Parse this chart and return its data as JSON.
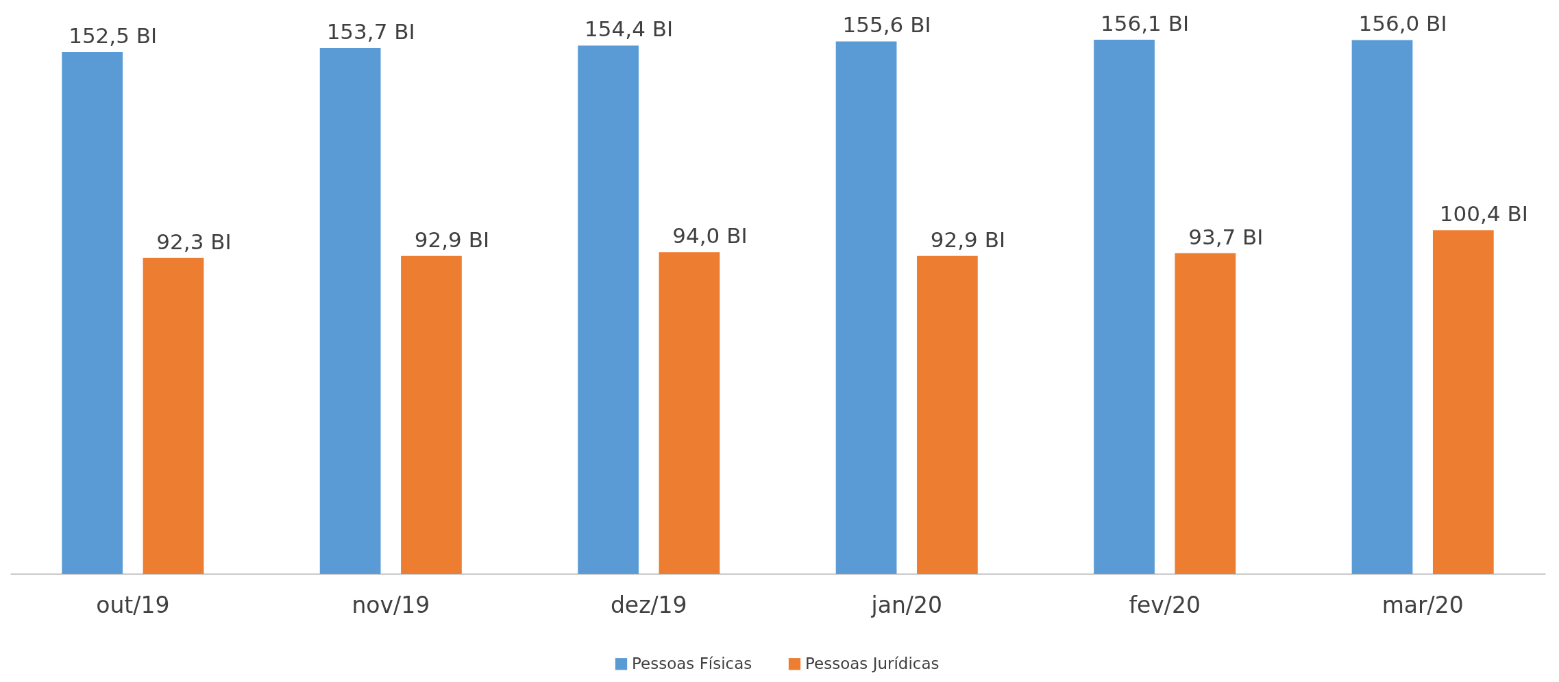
{
  "chart_data": {
    "type": "bar",
    "categories": [
      "out/19",
      "nov/19",
      "dez/19",
      "jan/20",
      "fev/20",
      "mar/20"
    ],
    "series": [
      {
        "name": "Pessoas Físicas",
        "color": "#5b9bd5",
        "values": [
          152.5,
          153.7,
          154.4,
          155.6,
          156.1,
          156.0
        ],
        "value_labels": [
          "152,5 BI",
          "153,7 BI",
          "154,4 BI",
          "155,6 BI",
          "156,1 BI",
          "156,0 BI"
        ]
      },
      {
        "name": "Pessoas Jurídicas",
        "color": "#ed7d31",
        "values": [
          92.3,
          92.9,
          94.0,
          92.9,
          93.7,
          100.4
        ],
        "value_labels": [
          "92,3 BI",
          "92,9 BI",
          "94,0 BI",
          "92,9 BI",
          "93,7 BI",
          "100,4 BI"
        ]
      }
    ],
    "legend": "bottom",
    "tick_labels": "x"
  }
}
